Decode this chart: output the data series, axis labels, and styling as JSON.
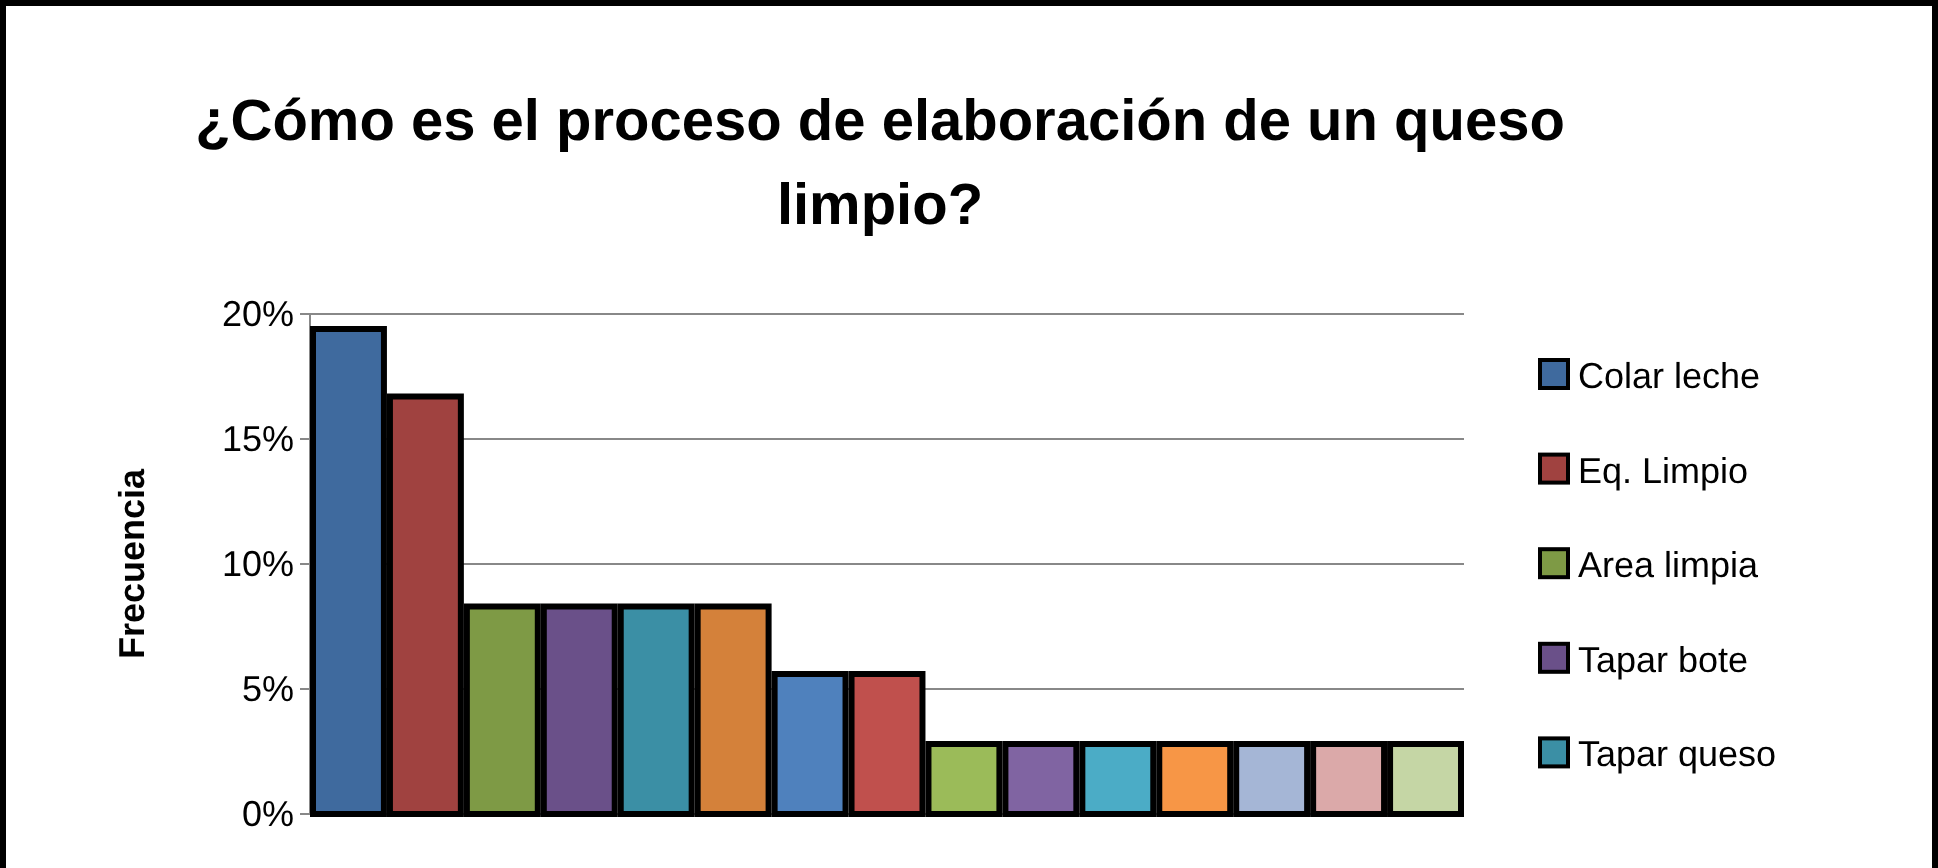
{
  "chart_data": {
    "type": "bar",
    "title": "¿Cómo es el proceso de elaboración de un queso limpio?",
    "ylabel": "Frecuencia",
    "categories": [
      null,
      null,
      null,
      null,
      null,
      null,
      null,
      null,
      null,
      null,
      null,
      null,
      null,
      null,
      null
    ],
    "series": [
      {
        "name": "Colar leche",
        "color": "#3f6a9e",
        "values": [
          19.4,
          null,
          null,
          null,
          null,
          null,
          null,
          null,
          null,
          null,
          null,
          null,
          null,
          null,
          null
        ]
      },
      {
        "name": "Eq. Limpio",
        "color": "#a04240",
        "values": [
          null,
          16.7,
          null,
          null,
          null,
          null,
          null,
          null,
          null,
          null,
          null,
          null,
          null,
          null,
          null
        ]
      },
      {
        "name": "Area limpia",
        "color": "#7e9a45",
        "values": [
          null,
          null,
          8.3,
          null,
          null,
          null,
          null,
          null,
          null,
          null,
          null,
          null,
          null,
          null,
          null
        ]
      },
      {
        "name": "Tapar bote",
        "color": "#6a5089",
        "values": [
          null,
          null,
          null,
          8.3,
          null,
          null,
          null,
          null,
          null,
          null,
          null,
          null,
          null,
          null,
          null
        ]
      },
      {
        "name": "Tapar queso",
        "color": "#3b8fa5",
        "values": [
          null,
          null,
          null,
          null,
          8.3,
          null,
          null,
          null,
          null,
          null,
          null,
          null,
          null,
          null,
          null
        ]
      },
      {
        "color": "#d4813a",
        "values": [
          null,
          null,
          null,
          null,
          null,
          8.3,
          null,
          null,
          null,
          null,
          null,
          null,
          null,
          null,
          null
        ]
      },
      {
        "color": "#4f81bd",
        "values": [
          null,
          null,
          null,
          null,
          null,
          null,
          5.6,
          null,
          null,
          null,
          null,
          null,
          null,
          null,
          null
        ]
      },
      {
        "color": "#c0504d",
        "values": [
          null,
          null,
          null,
          null,
          null,
          null,
          null,
          5.6,
          null,
          null,
          null,
          null,
          null,
          null,
          null
        ]
      },
      {
        "color": "#9bbb59",
        "values": [
          null,
          null,
          null,
          null,
          null,
          null,
          null,
          null,
          2.8,
          null,
          null,
          null,
          null,
          null,
          null
        ]
      },
      {
        "color": "#8064a2",
        "values": [
          null,
          null,
          null,
          null,
          null,
          null,
          null,
          null,
          null,
          2.8,
          null,
          null,
          null,
          null,
          null
        ]
      },
      {
        "color": "#4bacc6",
        "values": [
          null,
          null,
          null,
          null,
          null,
          null,
          null,
          null,
          null,
          null,
          2.8,
          null,
          null,
          null,
          null
        ]
      },
      {
        "color": "#f79646",
        "values": [
          null,
          null,
          null,
          null,
          null,
          null,
          null,
          null,
          null,
          null,
          null,
          2.8,
          null,
          null,
          null
        ]
      },
      {
        "color": "#a5b6d6",
        "values": [
          null,
          null,
          null,
          null,
          null,
          null,
          null,
          null,
          null,
          null,
          null,
          null,
          2.8,
          null,
          null
        ]
      },
      {
        "color": "#dba9a9",
        "values": [
          null,
          null,
          null,
          null,
          null,
          null,
          null,
          null,
          null,
          null,
          null,
          null,
          null,
          2.8,
          null
        ]
      },
      {
        "color": "#c5d6a5",
        "values": [
          null,
          null,
          null,
          null,
          null,
          null,
          null,
          null,
          null,
          null,
          null,
          null,
          null,
          null,
          2.8
        ]
      }
    ],
    "ylim": [
      0,
      20
    ],
    "yticks": [
      {
        "value": 0,
        "label": "0%"
      },
      {
        "value": 5,
        "label": "5%"
      },
      {
        "value": 10,
        "label": "10%"
      },
      {
        "value": 15,
        "label": "15%"
      },
      {
        "value": 20,
        "label": "20%"
      }
    ],
    "grid": "y",
    "legend": "right"
  }
}
